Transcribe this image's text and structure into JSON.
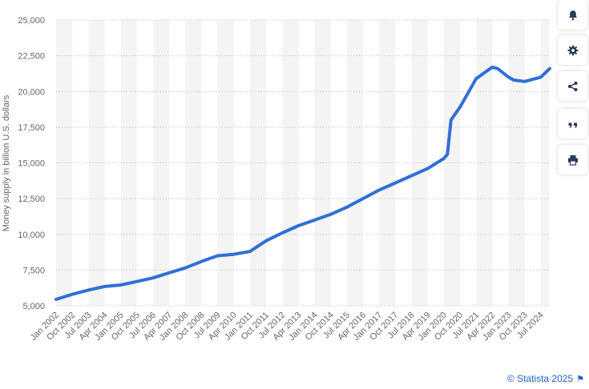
{
  "chart_data": {
    "type": "line",
    "ylabel": "Money supply in billion U.S. dollars",
    "ylim": [
      5000,
      25000
    ],
    "yticks": [
      5000,
      7500,
      10000,
      12500,
      15000,
      17500,
      20000,
      22500,
      25000
    ],
    "ytick_labels": [
      "5,000",
      "7,500",
      "10,000",
      "12,500",
      "15,000",
      "17,500",
      "20,000",
      "22,500",
      "25,000"
    ],
    "xtick_labels": [
      "Jan 2002",
      "Oct 2002",
      "Jul 2003",
      "Apr 2004",
      "Jan 2005",
      "Oct 2005",
      "Jul 2006",
      "Apr 2007",
      "Jan 2008",
      "Oct 2008",
      "Jul 2009",
      "Apr 2010",
      "Jan 2011",
      "Oct 2011",
      "Jul 2012",
      "Apr 2013",
      "Jan 2014",
      "Oct 2014",
      "Jul 2015",
      "Apr 2016",
      "Jan 2017",
      "Oct 2017",
      "Jul 2018",
      "Apr 2019",
      "Jan 2020",
      "Oct 2020",
      "Jul 2021",
      "Apr 2022",
      "Jan 2023",
      "Oct 2023",
      "Jul 2024"
    ],
    "grid": true,
    "line_color": "#2f6fd6",
    "series": [
      {
        "x": [
          "Jan 2002",
          "Oct 2002",
          "Jul 2003",
          "Apr 2004",
          "Jan 2005",
          "Oct 2005",
          "Jul 2006",
          "Apr 2007",
          "Jan 2008",
          "Oct 2008",
          "Jul 2009",
          "Apr 2010",
          "Jan 2011",
          "Oct 2011",
          "Jul 2012",
          "Apr 2013",
          "Jan 2014",
          "Oct 2014",
          "Jul 2015",
          "Apr 2016",
          "Jan 2017",
          "Oct 2017",
          "Jul 2018",
          "Apr 2019",
          "Jan 2020",
          "Mar 2020",
          "May 2020",
          "Oct 2020",
          "Jul 2021",
          "Apr 2022",
          "Jul 2022",
          "Jan 2023",
          "Apr 2023",
          "Oct 2023",
          "Jul 2024",
          "Dec 2024"
        ],
        "values": [
          5450,
          5800,
          6100,
          6350,
          6450,
          6700,
          6950,
          7300,
          7650,
          8100,
          8500,
          8600,
          8800,
          9550,
          10100,
          10600,
          11000,
          11400,
          11900,
          12500,
          13100,
          13600,
          14100,
          14600,
          15300,
          15600,
          18000,
          18900,
          20900,
          21700,
          21600,
          21000,
          20800,
          20700,
          21000,
          21600
        ]
      }
    ]
  },
  "toolbar": {
    "buttons": [
      {
        "name": "notification-bell",
        "icon": "bell-icon"
      },
      {
        "name": "settings",
        "icon": "gear-icon"
      },
      {
        "name": "share",
        "icon": "share-icon"
      },
      {
        "name": "cite",
        "icon": "quote-icon"
      },
      {
        "name": "print",
        "icon": "printer-icon"
      }
    ]
  },
  "credit": {
    "text": "© Statista 2025",
    "flag": "⚑"
  }
}
